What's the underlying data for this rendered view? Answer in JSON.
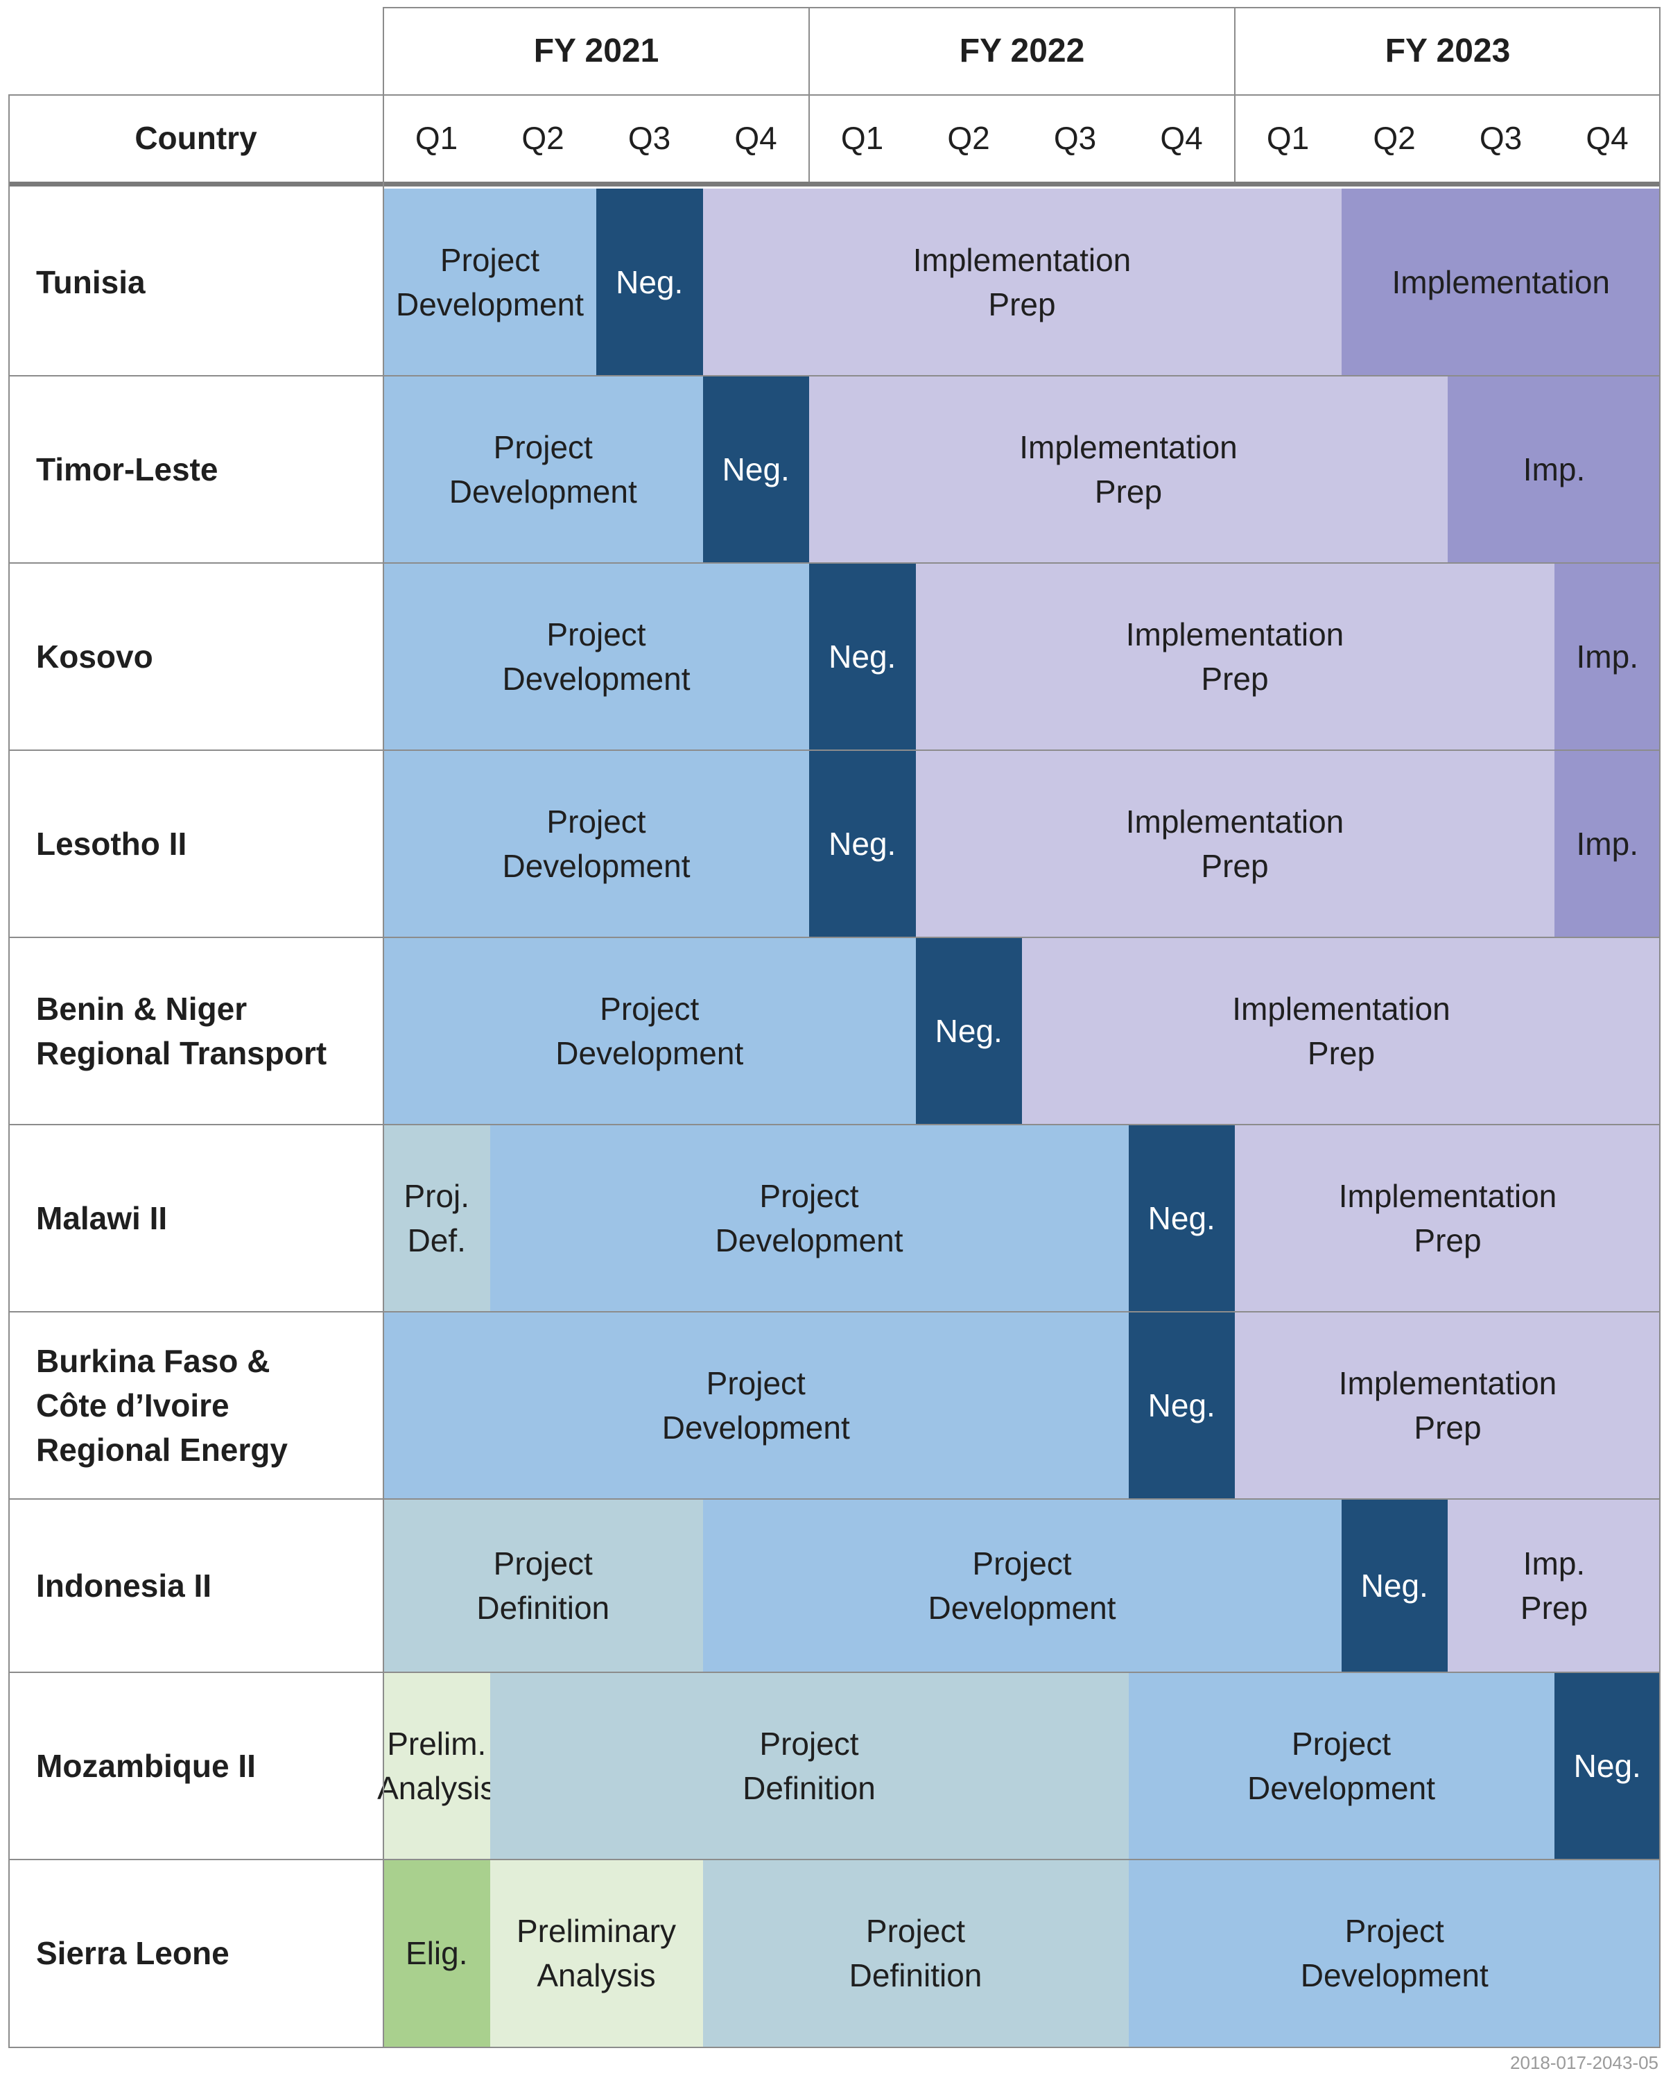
{
  "chart_data": {
    "type": "table",
    "country_header": "Country",
    "fiscal_years": [
      {
        "label": "FY 2021",
        "quarters": [
          "Q1",
          "Q2",
          "Q3",
          "Q4"
        ]
      },
      {
        "label": "FY 2022",
        "quarters": [
          "Q1",
          "Q2",
          "Q3",
          "Q4"
        ]
      },
      {
        "label": "FY 2023",
        "quarters": [
          "Q1",
          "Q2",
          "Q3",
          "Q4"
        ]
      }
    ],
    "phase_colors": {
      "eligibility": "#a9d08e",
      "preliminary-analysis": "#e2eed8",
      "project-definition": "#b7d1db",
      "project-development": "#9dc3e6",
      "negotiation": "#1f4e79",
      "implementation-prep": "#c9c6e4",
      "implementation": "#9896cc"
    },
    "rows": [
      {
        "country": "Tunisia",
        "phases": [
          {
            "label": "Project\nDevelopment",
            "phase": "project-development",
            "start": 0,
            "end": 2
          },
          {
            "label": "Neg.",
            "phase": "negotiation",
            "start": 2,
            "end": 3
          },
          {
            "label": "Implementation\nPrep",
            "phase": "implementation-prep",
            "start": 3,
            "end": 9
          },
          {
            "label": "Implementation",
            "phase": "implementation",
            "start": 9,
            "end": 12
          }
        ]
      },
      {
        "country": "Timor-Leste",
        "phases": [
          {
            "label": "Project\nDevelopment",
            "phase": "project-development",
            "start": 0,
            "end": 3
          },
          {
            "label": "Neg.",
            "phase": "negotiation",
            "start": 3,
            "end": 4
          },
          {
            "label": "Implementation\nPrep",
            "phase": "implementation-prep",
            "start": 4,
            "end": 10
          },
          {
            "label": "Imp.",
            "phase": "implementation",
            "start": 10,
            "end": 12
          }
        ]
      },
      {
        "country": "Kosovo",
        "phases": [
          {
            "label": "Project\nDevelopment",
            "phase": "project-development",
            "start": 0,
            "end": 4
          },
          {
            "label": "Neg.",
            "phase": "negotiation",
            "start": 4,
            "end": 5
          },
          {
            "label": "Implementation\nPrep",
            "phase": "implementation-prep",
            "start": 5,
            "end": 11
          },
          {
            "label": "Imp.",
            "phase": "implementation",
            "start": 11,
            "end": 12
          }
        ]
      },
      {
        "country": "Lesotho II",
        "phases": [
          {
            "label": "Project\nDevelopment",
            "phase": "project-development",
            "start": 0,
            "end": 4
          },
          {
            "label": "Neg.",
            "phase": "negotiation",
            "start": 4,
            "end": 5
          },
          {
            "label": "Implementation\nPrep",
            "phase": "implementation-prep",
            "start": 5,
            "end": 11
          },
          {
            "label": "Imp.",
            "phase": "implementation",
            "start": 11,
            "end": 12
          }
        ]
      },
      {
        "country": "Benin & Niger\nRegional Transport",
        "phases": [
          {
            "label": "Project\nDevelopment",
            "phase": "project-development",
            "start": 0,
            "end": 5
          },
          {
            "label": "Neg.",
            "phase": "negotiation",
            "start": 5,
            "end": 6
          },
          {
            "label": "Implementation\nPrep",
            "phase": "implementation-prep",
            "start": 6,
            "end": 12
          }
        ]
      },
      {
        "country": "Malawi II",
        "phases": [
          {
            "label": "Proj.\nDef.",
            "phase": "project-definition",
            "start": 0,
            "end": 1
          },
          {
            "label": "Project\nDevelopment",
            "phase": "project-development",
            "start": 1,
            "end": 7
          },
          {
            "label": "Neg.",
            "phase": "negotiation",
            "start": 7,
            "end": 8
          },
          {
            "label": "Implementation\nPrep",
            "phase": "implementation-prep",
            "start": 8,
            "end": 12
          }
        ]
      },
      {
        "country": "Burkina Faso &\nCôte d’Ivoire\nRegional Energy",
        "phases": [
          {
            "label": "Project\nDevelopment",
            "phase": "project-development",
            "start": 0,
            "end": 7
          },
          {
            "label": "Neg.",
            "phase": "negotiation",
            "start": 7,
            "end": 8
          },
          {
            "label": "Implementation\nPrep",
            "phase": "implementation-prep",
            "start": 8,
            "end": 12
          }
        ]
      },
      {
        "country": "Indonesia II",
        "phases": [
          {
            "label": "Project\nDefinition",
            "phase": "project-definition",
            "start": 0,
            "end": 3
          },
          {
            "label": "Project\nDevelopment",
            "phase": "project-development",
            "start": 3,
            "end": 9
          },
          {
            "label": "Neg.",
            "phase": "negotiation",
            "start": 9,
            "end": 10
          },
          {
            "label": "Imp.\nPrep",
            "phase": "implementation-prep",
            "start": 10,
            "end": 12
          }
        ]
      },
      {
        "country": "Mozambique II",
        "phases": [
          {
            "label": "Prelim.\nAnalysis",
            "phase": "preliminary-analysis",
            "start": 0,
            "end": 1
          },
          {
            "label": "Project\nDefinition",
            "phase": "project-definition",
            "start": 1,
            "end": 7
          },
          {
            "label": "Project\nDevelopment",
            "phase": "project-development",
            "start": 7,
            "end": 11
          },
          {
            "label": "Neg.",
            "phase": "negotiation",
            "start": 11,
            "end": 12
          }
        ]
      },
      {
        "country": "Sierra Leone",
        "phases": [
          {
            "label": "Elig.",
            "phase": "eligibility",
            "start": 0,
            "end": 1
          },
          {
            "label": "Preliminary\nAnalysis",
            "phase": "preliminary-analysis",
            "start": 1,
            "end": 3
          },
          {
            "label": "Project\nDefinition",
            "phase": "project-definition",
            "start": 3,
            "end": 7
          },
          {
            "label": "Project\nDevelopment",
            "phase": "project-development",
            "start": 7,
            "end": 12
          }
        ]
      }
    ]
  },
  "footer": {
    "code": "2018-017-2043-05"
  }
}
